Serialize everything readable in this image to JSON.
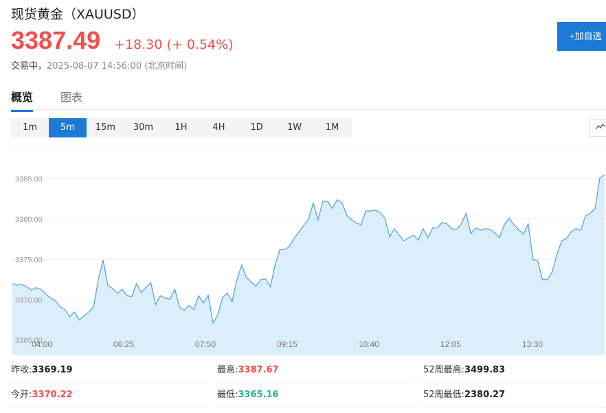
{
  "header": {
    "title": "现货黄金（XAUUSD）",
    "price": "3387.49",
    "change": "+18.30",
    "change_pct": "(+ 0.54%)",
    "state": "交易中，",
    "time": "2025-08-07 14:56:00 (北京时间)",
    "add_label": "+加自选"
  },
  "tabs": [
    "概览",
    "图表"
  ],
  "periods": [
    "1m",
    "5m",
    "15m",
    "30m",
    "1H",
    "4H",
    "1D",
    "1W",
    "1M"
  ],
  "active_period": "5m",
  "chart_icon": "line-chart-icon",
  "colors": {
    "up": "#f0504f",
    "down": "#2bb38f",
    "accent": "#1e7ad5",
    "line": "#4a9ee0",
    "area": "#ddeefb"
  },
  "chart_data": {
    "type": "area",
    "xlabel": "",
    "ylabel": "",
    "y_ticks": [
      "3385.00",
      "3380.00",
      "3375.00",
      "3370.00",
      "3365.00"
    ],
    "y_tick_values": [
      3385,
      3380,
      3375,
      3370,
      3365
    ],
    "x_ticks": [
      "04:00",
      "06:25",
      "07:50",
      "09:15",
      "10:40",
      "12:05",
      "13:30"
    ],
    "ylim": [
      3365,
      3389
    ],
    "grid": true,
    "values": [
      3372.0,
      3371.8,
      3371.9,
      3371.6,
      3371.2,
      3371.5,
      3371.3,
      3370.7,
      3370.2,
      3369.9,
      3369.1,
      3368.8,
      3367.9,
      3368.5,
      3367.5,
      3368.0,
      3368.5,
      3369.1,
      3372.5,
      3374.9,
      3371.8,
      3371.4,
      3370.8,
      3371.3,
      3370.5,
      3370.4,
      3372.0,
      3370.9,
      3371.6,
      3372.1,
      3369.4,
      3370.5,
      3370.2,
      3370.1,
      3371.3,
      3369.1,
      3368.7,
      3369.3,
      3368.8,
      3370.5,
      3369.6,
      3370.6,
      3367.1,
      3368.1,
      3370.3,
      3370.8,
      3369.8,
      3372.4,
      3374.3,
      3372.8,
      3372.2,
      3371.7,
      3372.5,
      3372.6,
      3371.6,
      3374.3,
      3376.2,
      3376.2,
      3376.6,
      3377.6,
      3378.4,
      3379.2,
      3380.0,
      3382.0,
      3379.9,
      3382.2,
      3382.2,
      3381.3,
      3382.4,
      3382.0,
      3380.5,
      3379.9,
      3379.5,
      3379.3,
      3381.0,
      3381.0,
      3381.1,
      3380.8,
      3380.1,
      3377.8,
      3378.8,
      3378.0,
      3377.3,
      3377.7,
      3378.0,
      3377.4,
      3378.8,
      3377.7,
      3378.9,
      3378.9,
      3379.6,
      3379.4,
      3378.8,
      3378.7,
      3379.4,
      3380.7,
      3378.2,
      3378.9,
      3378.6,
      3378.8,
      3378.7,
      3378.3,
      3377.7,
      3379.3,
      3380.1,
      3379.3,
      3378.7,
      3378.1,
      3379.4,
      3375.0,
      3374.8,
      3372.5,
      3372.5,
      3373.4,
      3375.6,
      3377.3,
      3377.6,
      3378.4,
      3378.8,
      3378.6,
      3380.4,
      3380.7,
      3381.3,
      3385.1,
      3385.5
    ]
  },
  "stats": [
    {
      "label": "昨收:",
      "value": "3369.19",
      "tone": "dark"
    },
    {
      "label": "最高:",
      "value": "3387.67",
      "tone": "red"
    },
    {
      "label": "52周最高:",
      "value": "3499.83",
      "tone": "dark"
    },
    {
      "label": "今开:",
      "value": "3370.22",
      "tone": "red"
    },
    {
      "label": "最低:",
      "value": "3365.16",
      "tone": "green"
    },
    {
      "label": "52周最低:",
      "value": "2380.27",
      "tone": "dark"
    }
  ]
}
